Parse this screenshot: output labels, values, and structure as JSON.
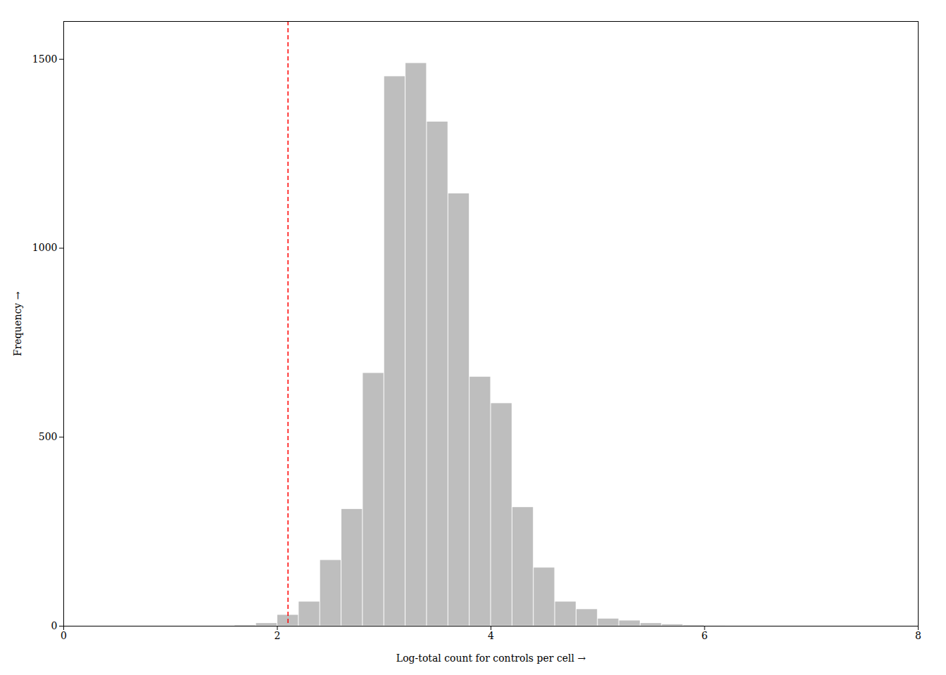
{
  "chart_data": {
    "type": "histogram",
    "xlabel": "Log-total count for controls per cell",
    "ylabel": "Frequency",
    "bins": [
      0.0,
      0.2,
      0.4,
      0.6,
      0.8,
      1.0,
      1.2,
      1.4,
      1.6,
      1.8,
      2.0,
      2.2,
      2.4,
      2.6,
      2.8,
      3.0,
      3.2,
      3.4,
      3.6,
      3.8,
      4.0,
      4.2,
      4.4,
      4.6,
      4.8,
      5.0,
      5.2,
      5.4,
      5.6,
      5.8,
      6.0,
      6.2,
      6.4,
      6.6,
      6.8,
      7.0,
      7.2,
      7.4,
      7.6,
      7.8,
      8.0
    ],
    "values": [
      1,
      0,
      0,
      0,
      0,
      0,
      1,
      1,
      3,
      8,
      30,
      65,
      175,
      310,
      670,
      1455,
      1490,
      1335,
      1145,
      660,
      590,
      315,
      155,
      65,
      45,
      20,
      15,
      8,
      5,
      3,
      2,
      1,
      1,
      1,
      0,
      0,
      0,
      0,
      0,
      0
    ],
    "color": "#bebebe",
    "xlim": [
      0,
      8
    ],
    "ylim": [
      0,
      1600
    ],
    "xticks": [
      0,
      2,
      4,
      6,
      8
    ],
    "yticks": [
      0,
      500,
      1000,
      1500
    ],
    "lines": [
      {
        "x": 2.1,
        "color": "red",
        "line_style": "dashed"
      }
    ]
  }
}
